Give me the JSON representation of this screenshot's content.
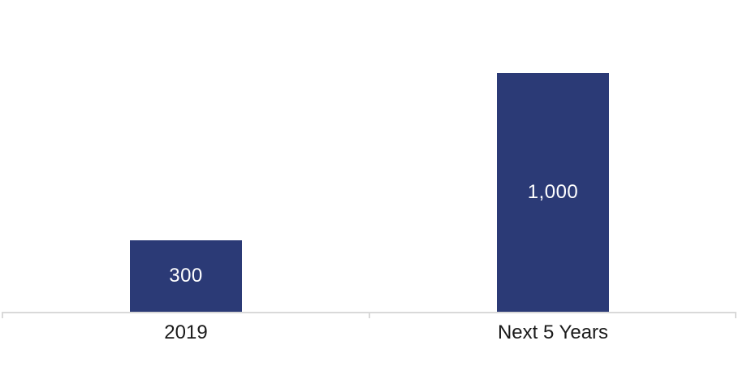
{
  "chart_data": {
    "type": "bar",
    "categories": [
      "2019",
      "Next 5 Years"
    ],
    "values": [
      300,
      1000
    ],
    "data_labels": [
      "300",
      "1,000"
    ],
    "title": "",
    "xlabel": "",
    "ylabel": "",
    "ylim": [
      0,
      1000
    ],
    "grid": false,
    "legend": false,
    "data_label_position": "center-inside-bar",
    "colors": {
      "bar_fill": "#2B3A76",
      "data_label_text": "#FFFFFF",
      "category_label_text": "#1A1A1A",
      "axis_line": "#D9D9D9",
      "background": "#FFFFFF"
    }
  }
}
